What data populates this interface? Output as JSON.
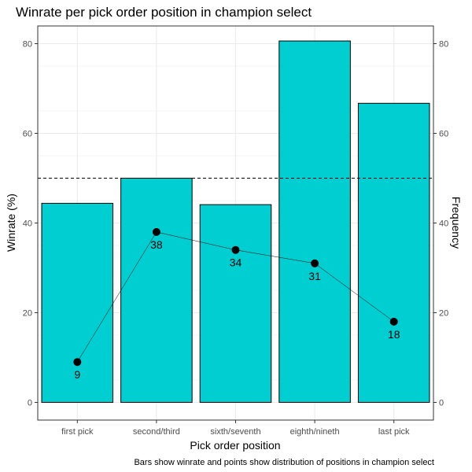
{
  "chart_data": {
    "type": "bar",
    "title": "Winrate per pick order position in champion select",
    "categories": [
      "first pick",
      "second/third",
      "sixth/seventh",
      "eighth/nineth",
      "last pick"
    ],
    "series": [
      {
        "name": "Winrate (%)",
        "kind": "bar",
        "axis": "left",
        "values": [
          44.4,
          50.0,
          44.1,
          80.6,
          66.7
        ],
        "color": "#00CED1"
      },
      {
        "name": "Frequency",
        "kind": "line+point",
        "axis": "right",
        "values": [
          9,
          38,
          34,
          31,
          18
        ],
        "color": "#000000"
      }
    ],
    "point_labels": [
      "9",
      "38",
      "34",
      "31",
      "18"
    ],
    "xlabel": "Pick order position",
    "ylabel": "Winrate (%)",
    "ylabel_right": "Frequency",
    "ylim": [
      -5,
      85
    ],
    "ylim_right": [
      -5,
      85
    ],
    "yticks": [
      0,
      20,
      40,
      60,
      80
    ],
    "yticks_right": [
      0,
      20,
      40,
      60,
      80
    ],
    "reference_line": {
      "value": 50,
      "style": "dashed",
      "axis": "left"
    },
    "caption": "Bars show winrate and points show distribution of positions in champion select",
    "grid": true,
    "legend": "none"
  }
}
